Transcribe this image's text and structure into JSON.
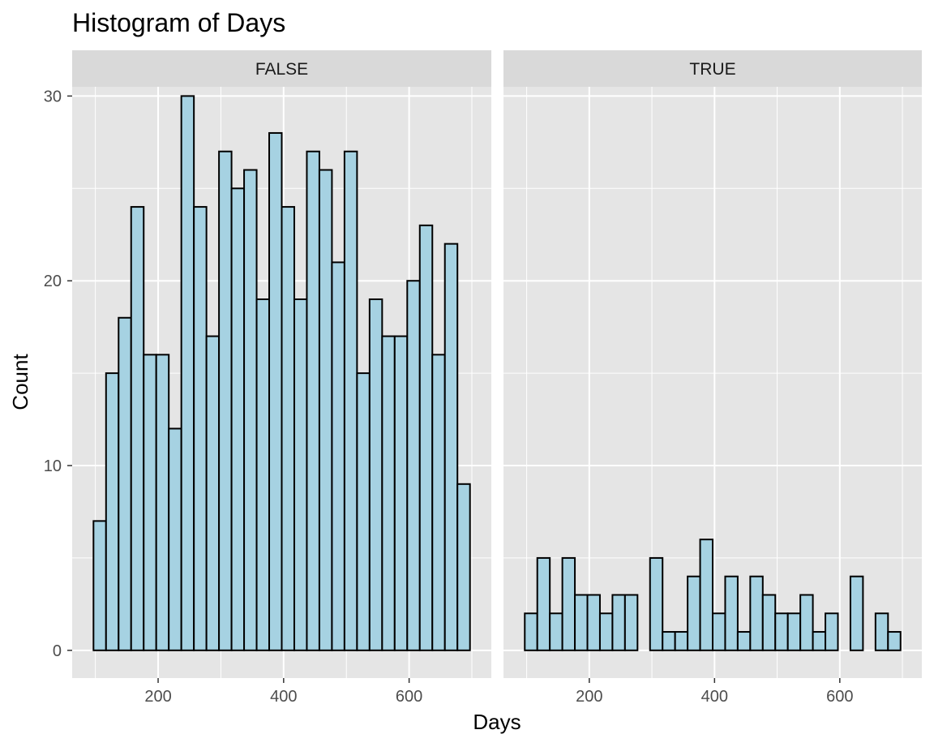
{
  "chart_data": {
    "type": "bar",
    "title": "Histogram of Days",
    "xlabel": "Days",
    "ylabel": "Count",
    "xlim": [
      63,
      731
    ],
    "ylim": [
      -1.5,
      30.5
    ],
    "x_ticks": [
      200,
      400,
      600
    ],
    "y_ticks": [
      0,
      10,
      20,
      30
    ],
    "bin_starts": [
      97,
      117,
      137,
      157,
      177,
      197,
      217,
      237,
      257,
      277,
      297,
      317,
      337,
      357,
      377,
      397,
      417,
      437,
      457,
      477,
      497,
      517,
      537,
      557,
      577,
      597,
      617,
      637,
      657,
      677
    ],
    "bin_width": 20,
    "grid": true,
    "bar_fill": "#a6d2e2",
    "bar_stroke": "#000000",
    "panel_background": "#e5e5e5",
    "strip_background": "#d9d9d9",
    "panels": [
      {
        "strip_label": "FALSE",
        "values": [
          7,
          15,
          18,
          24,
          16,
          16,
          12,
          30,
          24,
          17,
          27,
          25,
          26,
          19,
          28,
          24,
          19,
          27,
          26,
          21,
          27,
          15,
          19,
          17,
          17,
          20,
          23,
          16,
          22,
          9
        ]
      },
      {
        "strip_label": "TRUE",
        "values": [
          2,
          5,
          2,
          5,
          3,
          3,
          2,
          3,
          3,
          0,
          5,
          1,
          1,
          4,
          6,
          2,
          4,
          1,
          4,
          3,
          2,
          2,
          3,
          1,
          2,
          0,
          4,
          0,
          2,
          1
        ]
      }
    ]
  }
}
